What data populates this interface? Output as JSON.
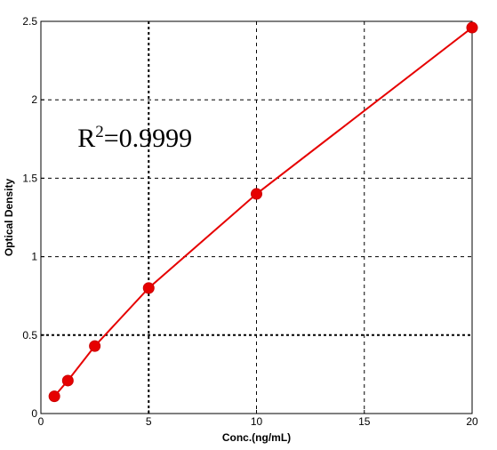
{
  "chart_data": {
    "type": "line",
    "title": "",
    "xlabel": "Conc.(ng/mL)",
    "ylabel": "Optical Density",
    "xlim": [
      0,
      20
    ],
    "ylim": [
      0,
      2.5
    ],
    "x_ticks": [
      0,
      5,
      10,
      15,
      20
    ],
    "y_ticks": [
      0,
      0.5,
      1,
      1.5,
      2,
      2.5
    ],
    "x_tick_labels": [
      "0",
      "5",
      "10",
      "15",
      "20"
    ],
    "y_tick_labels": [
      "0",
      "0.5",
      "1",
      "1.5",
      "2",
      "2.5"
    ],
    "grid": true,
    "series": [
      {
        "color": "#e60000",
        "x": [
          0.625,
          1.25,
          2.5,
          5,
          10,
          20
        ],
        "y": [
          0.11,
          0.21,
          0.43,
          0.8,
          1.4,
          2.46
        ]
      }
    ],
    "annotation": {
      "base": "R",
      "sup": "2",
      "rest": "=0.9999",
      "x": 1.7,
      "y": 1.7
    }
  }
}
